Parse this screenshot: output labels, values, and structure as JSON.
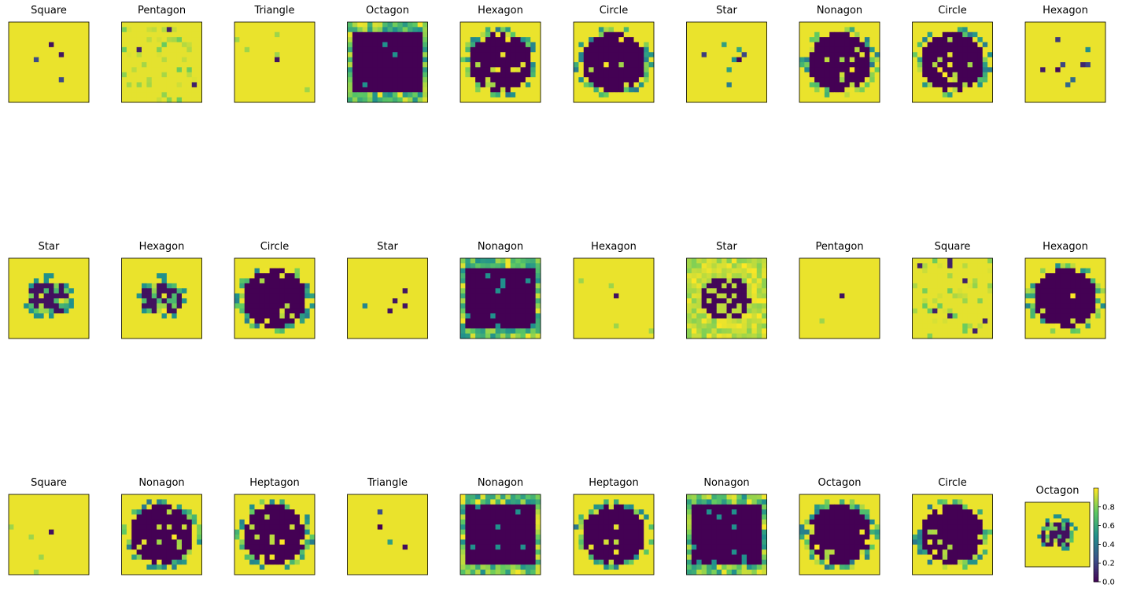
{
  "chart_data": {
    "type": "heatmap",
    "grid": {
      "rows": 3,
      "cols": 10
    },
    "image_resolution": 16,
    "colormap": "viridis",
    "panels": [
      {
        "title": "Square",
        "shape": "sparse",
        "seed": 11
      },
      {
        "title": "Pentagon",
        "shape": "noise",
        "seed": 12
      },
      {
        "title": "Triangle",
        "shape": "dot",
        "seed": 13
      },
      {
        "title": "Octagon",
        "shape": "full",
        "seed": 14
      },
      {
        "title": "Hexagon",
        "shape": "blob",
        "seed": 15
      },
      {
        "title": "Circle",
        "shape": "blob",
        "seed": 16
      },
      {
        "title": "Star",
        "shape": "sparse",
        "seed": 17
      },
      {
        "title": "Nonagon",
        "shape": "blob",
        "seed": 18
      },
      {
        "title": "Circle",
        "shape": "blob",
        "seed": 19
      },
      {
        "title": "Hexagon",
        "shape": "sparse",
        "seed": 20
      },
      {
        "title": "Star",
        "shape": "smallblob",
        "seed": 21
      },
      {
        "title": "Hexagon",
        "shape": "smallblob",
        "seed": 22
      },
      {
        "title": "Circle",
        "shape": "blob",
        "seed": 23
      },
      {
        "title": "Star",
        "shape": "sparse",
        "seed": 24
      },
      {
        "title": "Nonagon",
        "shape": "full",
        "seed": 25
      },
      {
        "title": "Hexagon",
        "shape": "dot",
        "seed": 26
      },
      {
        "title": "Star",
        "shape": "noiseblob",
        "seed": 27
      },
      {
        "title": "Pentagon",
        "shape": "dot",
        "seed": 28
      },
      {
        "title": "Square",
        "shape": "noise",
        "seed": 29
      },
      {
        "title": "Hexagon",
        "shape": "blob",
        "seed": 30
      },
      {
        "title": "Square",
        "shape": "dot",
        "seed": 31
      },
      {
        "title": "Nonagon",
        "shape": "blob",
        "seed": 32
      },
      {
        "title": "Heptagon",
        "shape": "blob",
        "seed": 33
      },
      {
        "title": "Triangle",
        "shape": "sparse",
        "seed": 34
      },
      {
        "title": "Nonagon",
        "shape": "full",
        "seed": 35
      },
      {
        "title": "Heptagon",
        "shape": "blob",
        "seed": 36
      },
      {
        "title": "Nonagon",
        "shape": "full",
        "seed": 37
      },
      {
        "title": "Octagon",
        "shape": "blob",
        "seed": 38
      },
      {
        "title": "Circle",
        "shape": "blob",
        "seed": 39
      },
      {
        "title": "Octagon",
        "shape": "smallblob",
        "seed": 40
      }
    ],
    "colorbar": {
      "range": [
        0.0,
        1.0
      ],
      "ticks": [
        {
          "value": 0.0,
          "label": "0.0"
        },
        {
          "value": 0.2,
          "label": "0.2"
        },
        {
          "value": 0.4,
          "label": "0.4"
        },
        {
          "value": 0.6,
          "label": "0.6"
        },
        {
          "value": 0.8,
          "label": "0.8"
        }
      ]
    }
  }
}
